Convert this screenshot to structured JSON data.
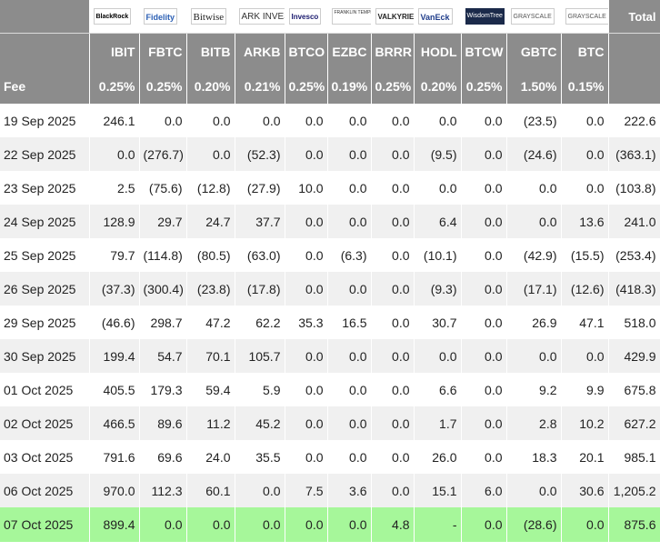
{
  "logos": [
    {
      "name": "blackrock",
      "text": "BlackRock"
    },
    {
      "name": "fidelity",
      "text": "Fidelity"
    },
    {
      "name": "bitwise",
      "text": "Bitwise"
    },
    {
      "name": "ark",
      "text": "ARK INVEST"
    },
    {
      "name": "invesco",
      "text": "Invesco"
    },
    {
      "name": "franklin",
      "text": "FRANKLIN TEMPLETON"
    },
    {
      "name": "valkyrie",
      "text": "VALKYRIE"
    },
    {
      "name": "vaneck",
      "text": "VanEck"
    },
    {
      "name": "wisdomtree",
      "text": "WisdomTree"
    },
    {
      "name": "grayscale-gbtc",
      "text": "GRAYSCALE"
    },
    {
      "name": "grayscale-btc",
      "text": "GRAYSCALE"
    }
  ],
  "total_header": "Total",
  "tickers": [
    "IBIT",
    "FBTC",
    "BITB",
    "ARKB",
    "BTCO",
    "EZBC",
    "BRRR",
    "HODL",
    "BTCW",
    "GBTC",
    "BTC"
  ],
  "fee": {
    "label": "Fee",
    "values": [
      "0.25%",
      "0.25%",
      "0.20%",
      "0.21%",
      "0.25%",
      "0.19%",
      "0.25%",
      "0.20%",
      "0.25%",
      "1.50%",
      "0.15%"
    ]
  },
  "rows": [
    {
      "date": "19 Sep 2025",
      "cells": [
        "246.1",
        "0.0",
        "0.0",
        "0.0",
        "0.0",
        "0.0",
        "0.0",
        "0.0",
        "0.0",
        "(23.5)",
        "0.0",
        "222.6"
      ]
    },
    {
      "date": "22 Sep 2025",
      "cells": [
        "0.0",
        "(276.7)",
        "0.0",
        "(52.3)",
        "0.0",
        "0.0",
        "0.0",
        "(9.5)",
        "0.0",
        "(24.6)",
        "0.0",
        "(363.1)"
      ]
    },
    {
      "date": "23 Sep 2025",
      "cells": [
        "2.5",
        "(75.6)",
        "(12.8)",
        "(27.9)",
        "10.0",
        "0.0",
        "0.0",
        "0.0",
        "0.0",
        "0.0",
        "0.0",
        "(103.8)"
      ]
    },
    {
      "date": "24 Sep 2025",
      "cells": [
        "128.9",
        "29.7",
        "24.7",
        "37.7",
        "0.0",
        "0.0",
        "0.0",
        "6.4",
        "0.0",
        "0.0",
        "13.6",
        "241.0"
      ]
    },
    {
      "date": "25 Sep 2025",
      "cells": [
        "79.7",
        "(114.8)",
        "(80.5)",
        "(63.0)",
        "0.0",
        "(6.3)",
        "0.0",
        "(10.1)",
        "0.0",
        "(42.9)",
        "(15.5)",
        "(253.4)"
      ]
    },
    {
      "date": "26 Sep 2025",
      "cells": [
        "(37.3)",
        "(300.4)",
        "(23.8)",
        "(17.8)",
        "0.0",
        "0.0",
        "0.0",
        "(9.3)",
        "0.0",
        "(17.1)",
        "(12.6)",
        "(418.3)"
      ]
    },
    {
      "date": "29 Sep 2025",
      "cells": [
        "(46.6)",
        "298.7",
        "47.2",
        "62.2",
        "35.3",
        "16.5",
        "0.0",
        "30.7",
        "0.0",
        "26.9",
        "47.1",
        "518.0"
      ]
    },
    {
      "date": "30 Sep 2025",
      "cells": [
        "199.4",
        "54.7",
        "70.1",
        "105.7",
        "0.0",
        "0.0",
        "0.0",
        "0.0",
        "0.0",
        "0.0",
        "0.0",
        "429.9"
      ]
    },
    {
      "date": "01 Oct 2025",
      "cells": [
        "405.5",
        "179.3",
        "59.4",
        "5.9",
        "0.0",
        "0.0",
        "0.0",
        "6.6",
        "0.0",
        "9.2",
        "9.9",
        "675.8"
      ]
    },
    {
      "date": "02 Oct 2025",
      "cells": [
        "466.5",
        "89.6",
        "11.2",
        "45.2",
        "0.0",
        "0.0",
        "0.0",
        "1.7",
        "0.0",
        "2.8",
        "10.2",
        "627.2"
      ]
    },
    {
      "date": "03 Oct 2025",
      "cells": [
        "791.6",
        "69.6",
        "24.0",
        "35.5",
        "0.0",
        "0.0",
        "0.0",
        "26.0",
        "0.0",
        "18.3",
        "20.1",
        "985.1"
      ]
    },
    {
      "date": "06 Oct 2025",
      "cells": [
        "970.0",
        "112.3",
        "60.1",
        "0.0",
        "7.5",
        "3.6",
        "0.0",
        "15.1",
        "6.0",
        "0.0",
        "30.6",
        "1,205.2"
      ]
    },
    {
      "date": "07 Oct 2025",
      "cells": [
        "899.4",
        "0.0",
        "0.0",
        "0.0",
        "0.0",
        "0.0",
        "4.8",
        "-",
        "0.0",
        "(28.6)",
        "0.0",
        "875.6"
      ]
    }
  ],
  "colors": {
    "header_bg": "#8c8c8c",
    "negative": "#d10000",
    "latest_row_bg": "#a6f79a",
    "stripe_bg": "#f0f0f0"
  }
}
